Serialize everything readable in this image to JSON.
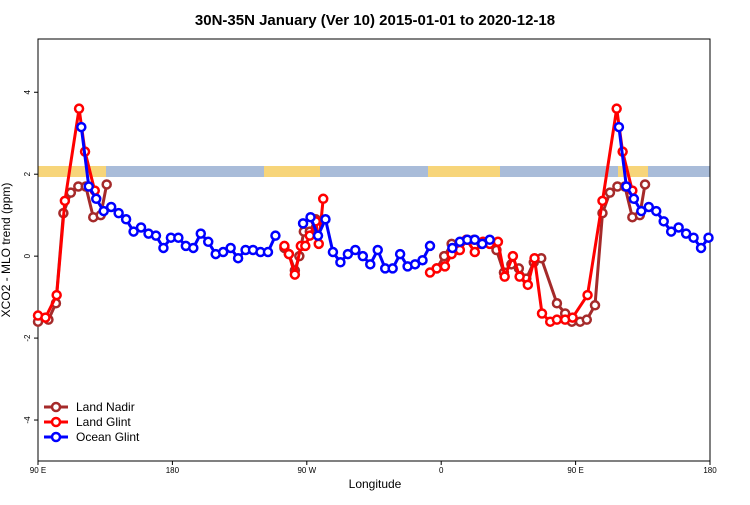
{
  "chart_data": {
    "type": "line",
    "title": "30N-35N January (Ver 10)   2015-01-01 to 2020-12-18",
    "x_label": "Longitude",
    "y_label": "XCO2 - MLO trend (ppm)",
    "xlim": [
      90,
      540
    ],
    "ylim": [
      -5,
      5.3
    ],
    "xticks": [
      {
        "value": 90,
        "label": "90 E"
      },
      {
        "value": 180,
        "label": "180"
      },
      {
        "value": 270,
        "label": "90 W"
      },
      {
        "value": 360,
        "label": "0"
      },
      {
        "value": 450,
        "label": "90 E"
      },
      {
        "value": 540,
        "label": "180"
      }
    ],
    "yticks": [
      -4,
      -2,
      0,
      2,
      4
    ],
    "legend": "bottom-left",
    "series": [
      {
        "name": "Land Nadir",
        "color": "#a52a2a",
        "x": [
          90,
          97,
          102,
          107,
          112,
          117,
          122,
          127,
          132,
          136,
          null,
          255,
          258,
          262,
          265,
          268,
          272,
          276,
          null,
          357,
          362,
          367,
          372,
          377,
          382,
          387,
          392,
          397,
          402,
          407,
          412,
          417,
          422,
          427,
          437.5,
          443,
          447.5,
          453,
          457.5,
          463,
          468,
          473,
          478,
          483,
          488,
          493,
          496.5
        ],
        "values": [
          -1.6,
          -1.55,
          -1.15,
          1.05,
          1.55,
          1.7,
          1.7,
          0.95,
          1.0,
          1.75,
          null,
          0.2,
          0.05,
          -0.35,
          0.0,
          0.6,
          0.6,
          0.9,
          null,
          -0.3,
          0.0,
          0.3,
          0.15,
          0.4,
          0.4,
          0.3,
          0.35,
          0.15,
          -0.4,
          -0.2,
          -0.3,
          -0.55,
          -0.15,
          -0.05,
          -1.15,
          -1.4,
          -1.6,
          -1.6,
          -1.55,
          -1.2,
          1.05,
          1.55,
          1.7,
          1.7,
          0.95,
          1.0,
          1.75
        ]
      },
      {
        "name": "Land Glint",
        "color": "#ff0000",
        "x": [
          90,
          95,
          102.5,
          108,
          117.5,
          121.5,
          128,
          null,
          255,
          258,
          262,
          266,
          269,
          272,
          276,
          278,
          281,
          null,
          352.5,
          357,
          362.5,
          367,
          372.5,
          377,
          382.5,
          388,
          392.5,
          398,
          402.5,
          408,
          412.5,
          418,
          422.5,
          427.5,
          433,
          437.5,
          443,
          448,
          458,
          468,
          477.5,
          481.5,
          488
        ],
        "values": [
          -1.45,
          -1.5,
          -0.95,
          1.35,
          3.6,
          2.55,
          1.6,
          null,
          0.25,
          0.05,
          -0.45,
          0.25,
          0.25,
          0.5,
          0.85,
          0.3,
          1.4,
          null,
          -0.4,
          -0.3,
          -0.25,
          0.05,
          0.15,
          0.4,
          0.1,
          0.35,
          0.3,
          0.35,
          -0.5,
          0.0,
          -0.5,
          -0.7,
          -0.05,
          -1.4,
          -1.6,
          -1.55,
          -1.55,
          -1.5,
          -0.95,
          1.35,
          3.6,
          2.55,
          1.6
        ]
      },
      {
        "name": "Ocean Glint",
        "color": "#0000ff",
        "x": [
          119,
          124,
          129,
          134,
          139,
          144,
          149,
          154,
          159,
          164,
          169,
          174,
          179,
          184,
          189,
          194,
          199,
          204,
          209,
          214,
          219,
          224,
          229,
          234,
          239,
          244,
          249,
          null,
          267.5,
          272.5,
          277.5,
          282.5,
          287.5,
          292.5,
          297.5,
          302.5,
          307.5,
          312.5,
          317.5,
          322.5,
          327.5,
          332.5,
          337.5,
          342.5,
          347.5,
          352.5,
          null,
          367.5,
          372.5,
          377.5,
          382.5,
          387.5,
          392.5,
          null,
          479,
          484,
          489,
          494,
          499,
          504,
          509,
          514,
          519,
          524,
          529,
          534,
          539
        ],
        "values": [
          3.15,
          1.7,
          1.4,
          1.1,
          1.2,
          1.05,
          0.9,
          0.6,
          0.7,
          0.55,
          0.5,
          0.2,
          0.45,
          0.45,
          0.25,
          0.2,
          0.55,
          0.35,
          0.05,
          0.1,
          0.2,
          -0.05,
          0.15,
          0.15,
          0.1,
          0.1,
          0.5,
          null,
          0.8,
          0.95,
          0.5,
          0.9,
          0.1,
          -0.15,
          0.05,
          0.15,
          0.0,
          -0.2,
          0.15,
          -0.3,
          -0.3,
          0.05,
          -0.25,
          -0.2,
          -0.1,
          0.25,
          null,
          0.2,
          0.35,
          0.4,
          0.4,
          0.3,
          0.4,
          null,
          3.15,
          1.7,
          1.4,
          1.1,
          1.2,
          1.1,
          0.85,
          0.6,
          0.7,
          0.55,
          0.45,
          0.2,
          0.45
        ]
      }
    ]
  }
}
